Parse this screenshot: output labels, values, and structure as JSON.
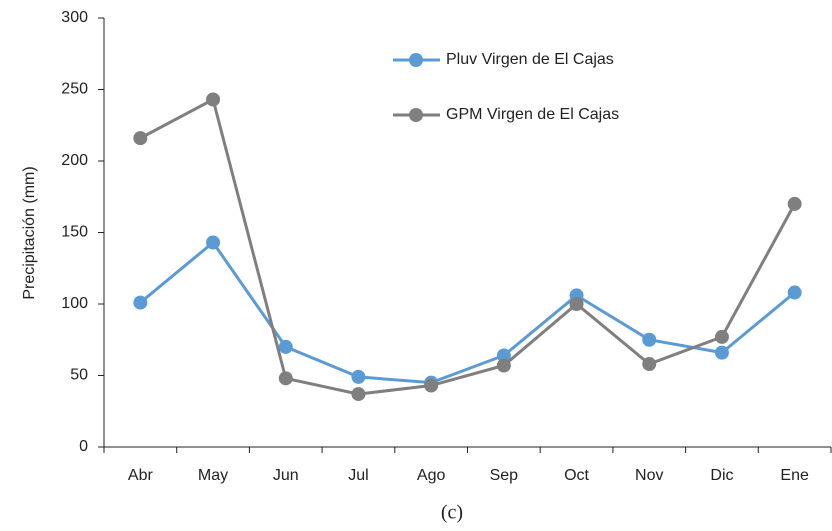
{
  "chart_data": {
    "type": "line",
    "y_label": "Precipitación (mm)",
    "caption": "(c)",
    "categories": [
      "Abr",
      "May",
      "Jun",
      "Jul",
      "Ago",
      "Sep",
      "Oct",
      "Nov",
      "Dic",
      "Ene"
    ],
    "series": [
      {
        "name": "Pluv Virgen de El Cajas",
        "color": "#5b9bd5",
        "values": [
          101,
          143,
          70,
          49,
          45,
          64,
          106,
          75,
          66,
          108
        ]
      },
      {
        "name": "GPM Virgen de El Cajas",
        "color": "#7f7f7f",
        "values": [
          216,
          243,
          48,
          37,
          43,
          57,
          100,
          58,
          77,
          170
        ]
      }
    ],
    "ylim": [
      0,
      300
    ],
    "yticks": [
      0,
      50,
      100,
      150,
      200,
      250,
      300
    ],
    "grid": false
  }
}
